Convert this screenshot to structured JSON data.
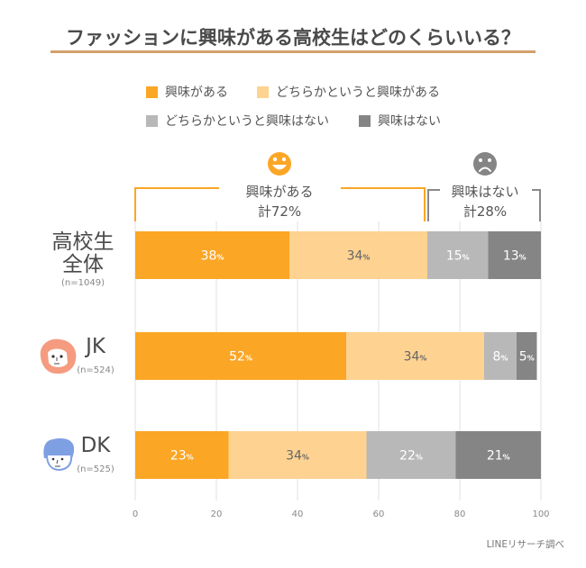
{
  "title": "ファッションに興味がある高校生はどのくらいいる？",
  "source": "LINEリサーチ調べ",
  "colors": {
    "interested": "#fca626",
    "somewhat_interested": "#fed291",
    "somewhat_not": "#b8b8b8",
    "not_interested": "#858585",
    "rule": "#d2a06c",
    "grid": "#e2e2e2",
    "jk_icon": "#f59b7f",
    "dk_icon": "#7f9fe3"
  },
  "legend": [
    {
      "label": "興味がある",
      "color_key": "interested"
    },
    {
      "label": "どちらかというと興味がある",
      "color_key": "somewhat_interested"
    },
    {
      "label": "どちらかというと興味はない",
      "color_key": "somewhat_not"
    },
    {
      "label": "興味はない",
      "color_key": "not_interested"
    }
  ],
  "annotations": {
    "positive": {
      "icon": "smile-icon",
      "line1": "興味がある",
      "line2": "計72%"
    },
    "negative": {
      "icon": "frown-icon",
      "line1": "興味はない",
      "line2": "計28%"
    }
  },
  "groups": [
    {
      "line1": "高校生",
      "line2": "全体",
      "n": "(n=1049)",
      "icon": ""
    },
    {
      "line1": "JK",
      "line2": "",
      "n": "(n=524)",
      "icon": "girl-face-icon"
    },
    {
      "line1": "DK",
      "line2": "",
      "n": "(n=525)",
      "icon": "boy-face-icon"
    }
  ],
  "chart_data": {
    "type": "bar",
    "orientation": "horizontal",
    "stacked": true,
    "title": "ファッションに興味がある高校生はどのくらいいる？",
    "categories": [
      "高校生全体",
      "JK",
      "DK"
    ],
    "series": [
      {
        "name": "興味がある",
        "values": [
          38,
          52,
          23
        ],
        "labels": [
          "38",
          "52",
          "23"
        ]
      },
      {
        "name": "どちらかというと興味がある",
        "values": [
          34,
          34,
          34
        ],
        "labels": [
          "34",
          "34",
          "34"
        ]
      },
      {
        "name": "どちらかというと興味はない",
        "values": [
          15,
          8,
          22
        ],
        "labels": [
          "15",
          "8",
          "22"
        ]
      },
      {
        "name": "興味はない",
        "values": [
          13,
          5,
          21
        ],
        "labels": [
          "13",
          "5",
          "21"
        ]
      }
    ],
    "unit_suffix": "%",
    "xlim": [
      0,
      100
    ],
    "xticks": [
      "0",
      "20",
      "40",
      "60",
      "80",
      "100"
    ],
    "xtick_values": [
      0,
      20,
      40,
      60,
      80,
      100
    ],
    "grid": true,
    "legend_position": "top",
    "xlabel": "",
    "ylabel": ""
  }
}
